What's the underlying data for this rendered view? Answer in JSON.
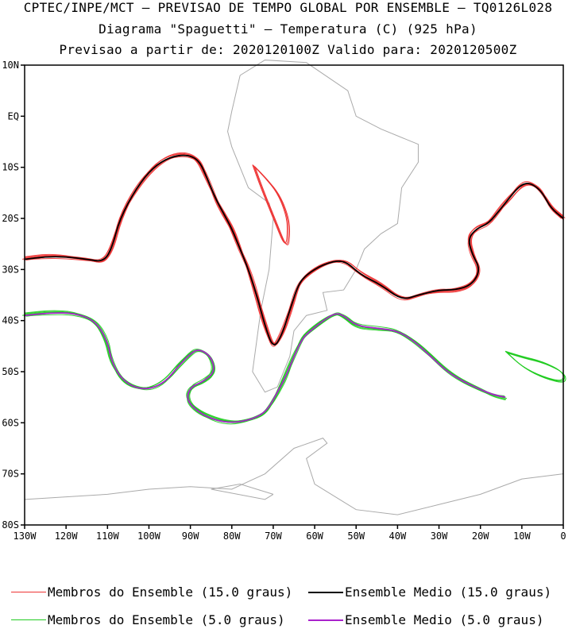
{
  "header": {
    "line1": "CPTEC/INPE/MCT — PREVISAO DE TEMPO GLOBAL POR ENSEMBLE — TQ0126L028",
    "line2": "Diagrama \"Spaguetti\" — Temperatura (C) (925 hPa)",
    "line3": "Previsao a partir de: 2020120100Z  Valido para: 2020120500Z"
  },
  "chart_data": {
    "type": "line",
    "map": "spaghetti-contour",
    "xlim": [
      -130,
      0
    ],
    "ylim": [
      -80,
      10
    ],
    "x_ticks": [
      -130,
      -120,
      -110,
      -100,
      -90,
      -80,
      -70,
      -60,
      -50,
      -40,
      -30,
      -20,
      -10,
      0
    ],
    "x_tick_labels": [
      "130W",
      "120W",
      "110W",
      "100W",
      "90W",
      "80W",
      "70W",
      "60W",
      "50W",
      "40W",
      "30W",
      "20W",
      "10W",
      "0"
    ],
    "y_ticks": [
      10,
      0,
      -10,
      -20,
      -30,
      -40,
      -50,
      -60,
      -70,
      -80
    ],
    "y_tick_labels": [
      "10N",
      "EQ",
      "10S",
      "20S",
      "30S",
      "40S",
      "50S",
      "60S",
      "70S",
      "80S"
    ],
    "colors": {
      "members15": "#ee3333",
      "mean15": "#000000",
      "members5": "#22cc22",
      "mean5": "#aa22cc",
      "coast": "#aaaaaa"
    },
    "series": [
      {
        "name": "Membros do Ensemble (15.0 graus)",
        "color": "#ee3333",
        "kind": "members",
        "x": [
          -130,
          -125,
          -120,
          -115,
          -111,
          -109,
          -107,
          -103,
          -99,
          -95,
          -91,
          -88,
          -86,
          -84,
          -82,
          -80,
          -78,
          -76,
          -74,
          -72,
          -70,
          -68,
          -66,
          -64,
          -62,
          -58,
          -53,
          -49,
          -44,
          -39,
          -35,
          -30,
          -26,
          -22,
          -20,
          -22,
          -23,
          -21,
          -18,
          -15,
          -13,
          -11,
          -9,
          -7,
          -5,
          -3,
          0
        ],
        "y": [
          -28,
          -27.5,
          -27.5,
          -28,
          -28.5,
          -26,
          -20,
          -14,
          -10,
          -8,
          -7.5,
          -8.5,
          -12,
          -16,
          -19,
          -22,
          -26,
          -30,
          -35,
          -41,
          -45.5,
          -43,
          -38,
          -33,
          -31,
          -29,
          -28,
          -31,
          -33,
          -36,
          -35,
          -34,
          -34,
          -33,
          -30,
          -27,
          -24,
          -22,
          -21,
          -18,
          -16,
          -14,
          -13,
          -13.5,
          -15,
          -18,
          -20
        ]
      },
      {
        "name": "Ensemble Medio (15.0 graus)",
        "color": "#000000",
        "kind": "mean",
        "x": [
          -130,
          -125,
          -120,
          -115,
          -111,
          -109,
          -107,
          -103,
          -99,
          -95,
          -91,
          -88,
          -86,
          -84,
          -82,
          -80,
          -78,
          -76,
          -74,
          -72,
          -70,
          -68,
          -66,
          -64,
          -62,
          -58,
          -53,
          -49,
          -44,
          -39,
          -35,
          -30,
          -26,
          -22,
          -20,
          -22,
          -23,
          -21,
          -18,
          -15,
          -13,
          -11,
          -9,
          -7,
          -5,
          -3,
          0
        ],
        "y": [
          -28,
          -27.5,
          -27.5,
          -28,
          -28.5,
          -26,
          -20,
          -14,
          -10,
          -8,
          -7.5,
          -8.5,
          -12,
          -16,
          -19,
          -22,
          -26,
          -30,
          -35,
          -41,
          -45.5,
          -43,
          -38,
          -33,
          -31,
          -29,
          -28,
          -31,
          -33,
          -36,
          -35,
          -34,
          -34,
          -33,
          -30,
          -27,
          -24,
          -22,
          -21,
          -18,
          -16,
          -14,
          -13,
          -13.5,
          -15,
          -18,
          -20
        ]
      },
      {
        "name": "Membros do Ensemble (5.0 graus)",
        "color": "#22cc22",
        "kind": "members",
        "x": [
          -130,
          -124,
          -118,
          -113,
          -110,
          -109,
          -107,
          -104,
          -100,
          -96,
          -93,
          -90,
          -88,
          -85,
          -84,
          -87,
          -90,
          -91,
          -88,
          -84,
          -80,
          -76,
          -73,
          -71,
          -69,
          -67,
          -65,
          -63,
          -61,
          -58,
          -55,
          -53,
          -50,
          -45,
          -40,
          -36,
          -32,
          -28,
          -24,
          -20,
          -17,
          -14
        ],
        "y": [
          -39,
          -38.5,
          -38.5,
          -40,
          -44,
          -48,
          -51,
          -53,
          -53.5,
          -52,
          -49,
          -46.5,
          -45.5,
          -47,
          -50,
          -52,
          -53,
          -55.5,
          -58,
          -59.5,
          -60,
          -59.5,
          -58.5,
          -57,
          -54,
          -51,
          -47,
          -43.5,
          -42,
          -40,
          -38.5,
          -39,
          -41,
          -41.5,
          -42,
          -44,
          -47,
          -50,
          -52,
          -53.5,
          -54.5,
          -55
        ]
      },
      {
        "name": "Ensemble Medio (5.0 graus)",
        "color": "#aa22cc",
        "kind": "mean",
        "x": [
          -130,
          -124,
          -118,
          -113,
          -110,
          -109,
          -107,
          -104,
          -100,
          -96,
          -93,
          -90,
          -88,
          -85,
          -84,
          -87,
          -90,
          -91,
          -88,
          -84,
          -80,
          -76,
          -73,
          -71,
          -69,
          -67,
          -65,
          -63,
          -61,
          -58,
          -55,
          -53,
          -50,
          -45,
          -40,
          -36,
          -32,
          -28,
          -24,
          -20,
          -17,
          -14
        ],
        "y": [
          -39,
          -38.5,
          -38.5,
          -40,
          -44,
          -48,
          -51,
          -53,
          -53.5,
          -52,
          -49,
          -46.5,
          -45.5,
          -47,
          -50,
          -52,
          -53,
          -55.5,
          -58,
          -59.5,
          -60,
          -59.5,
          -58.5,
          -57,
          -54,
          -51,
          -47,
          -43.5,
          -42,
          -40,
          -38.5,
          -39,
          -41,
          -41.5,
          -42,
          -44,
          -47,
          -50,
          -52,
          -53.5,
          -54.5,
          -55
        ]
      }
    ],
    "extra_contours": [
      {
        "color": "#ee3333",
        "x": [
          -75,
          -72,
          -69,
          -67,
          -66.5,
          -67,
          -70,
          -73,
          -75
        ],
        "y": [
          -9.5,
          -12,
          -15,
          -19,
          -22,
          -26,
          -20,
          -14,
          -9.5
        ]
      },
      {
        "color": "#22cc22",
        "x": [
          -14,
          -10,
          -5,
          0,
          0,
          -5,
          -10,
          -14
        ],
        "y": [
          -46,
          -47,
          -48,
          -50,
          -52,
          -51,
          -49,
          -46
        ]
      }
    ],
    "grid": false,
    "legend_position": "bottom"
  },
  "legend": [
    {
      "label": "Membros do Ensemble (15.0 graus)",
      "color": "#ee3333"
    },
    {
      "label": "Ensemble Medio (15.0 graus)",
      "color": "#000000"
    },
    {
      "label": "Membros do Ensemble (5.0 graus)",
      "color": "#22cc22"
    },
    {
      "label": "Ensemble Medio (5.0 graus)",
      "color": "#aa22cc"
    }
  ]
}
